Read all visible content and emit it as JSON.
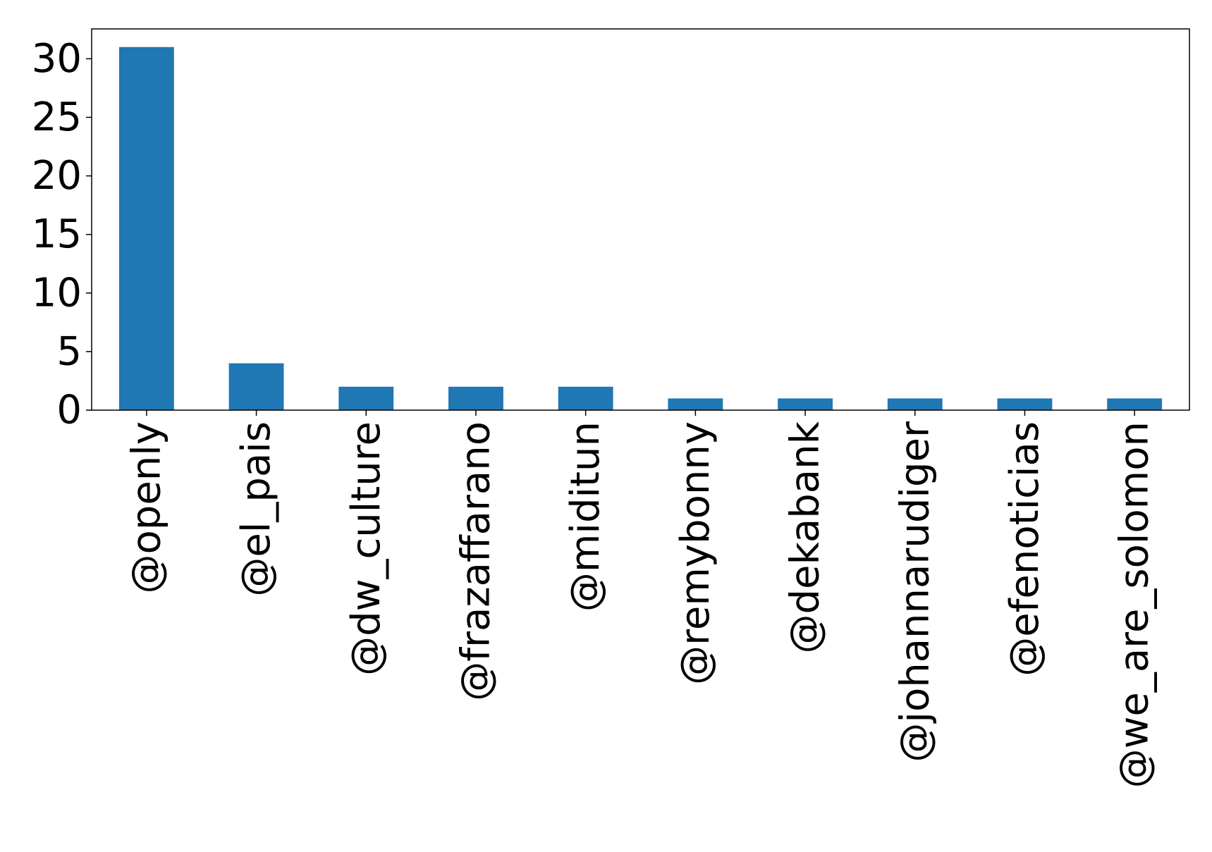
{
  "chart_data": {
    "type": "bar",
    "title": "",
    "xlabel": "",
    "ylabel": "",
    "categories": [
      "@openly",
      "@el_pais",
      "@dw_culture",
      "@frazaffarano",
      "@miditun",
      "@remybonny",
      "@dekabank",
      "@johannarudiger",
      "@efenoticias",
      "@we_are_solomon"
    ],
    "values": [
      31,
      4,
      2,
      2,
      2,
      1,
      1,
      1,
      1,
      1
    ],
    "ylim": [
      0,
      32.55
    ],
    "yticks": [
      0,
      5,
      10,
      15,
      20,
      25,
      30
    ],
    "ytick_labels": [
      "0",
      "5",
      "10",
      "15",
      "20",
      "25",
      "30"
    ],
    "bar_color": "#1f77b4",
    "grid": false,
    "legend": "none"
  }
}
